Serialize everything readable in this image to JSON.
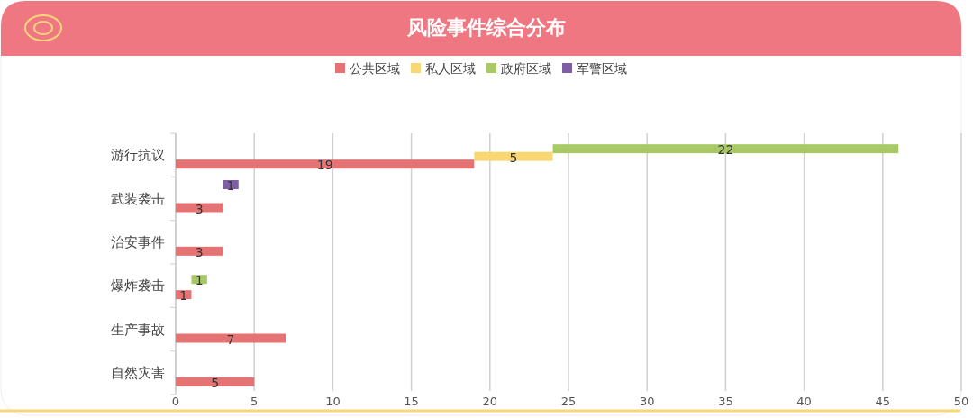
{
  "chart_data": {
    "type": "bar",
    "title": "风险事件综合分布",
    "orientation": "horizontal",
    "stacked": true,
    "categories": [
      "游行抗议",
      "武装袭击",
      "治安事件",
      "爆炸袭击",
      "生产事故",
      "自然灾害"
    ],
    "series": [
      {
        "name": "公共区域",
        "color": "#e57373",
        "values": [
          19,
          3,
          3,
          1,
          7,
          5
        ]
      },
      {
        "name": "私人区域",
        "color": "#f8d774",
        "values": [
          5,
          null,
          null,
          null,
          null,
          null
        ]
      },
      {
        "name": "政府区域",
        "color": "#a9c967",
        "values": [
          22,
          null,
          null,
          1,
          null,
          null
        ]
      },
      {
        "name": "军警区域",
        "color": "#7e5fa6",
        "values": [
          null,
          1,
          null,
          null,
          null,
          null
        ]
      }
    ],
    "xlim": [
      0,
      50
    ],
    "xticks": [
      0,
      5,
      10,
      15,
      20,
      25,
      30,
      35,
      40,
      45,
      50
    ],
    "grid": "x",
    "legend": "top",
    "data_labels": true
  }
}
